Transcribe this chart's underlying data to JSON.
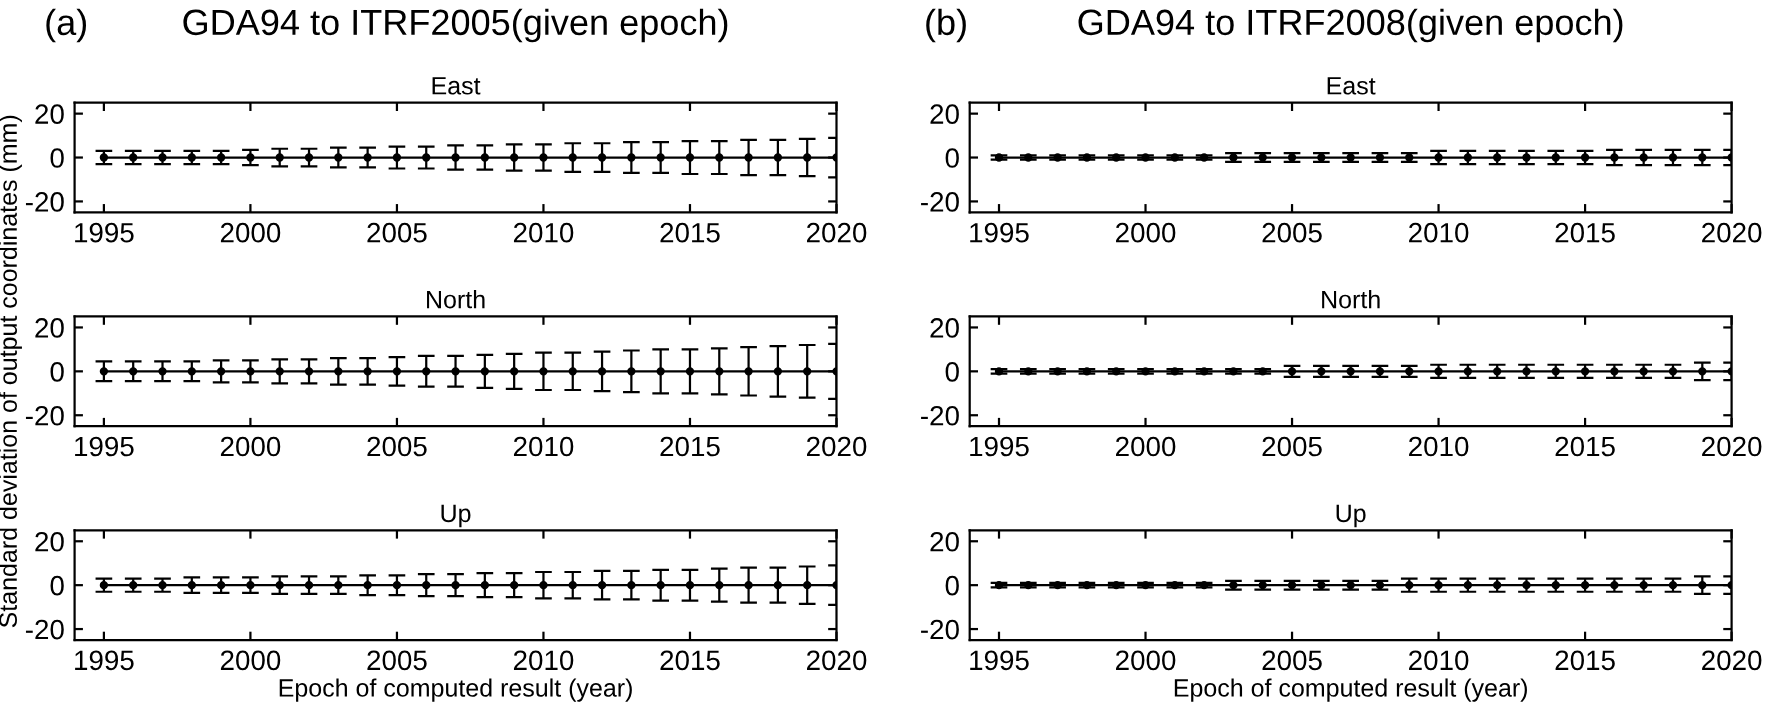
{
  "chart_data": [
    {
      "type": "line",
      "title": "GDA94 to ITRF2005(given epoch)",
      "subtitle": "East",
      "annotations": [
        "(a)"
      ],
      "x": [
        1995,
        1996,
        1997,
        1998,
        1999,
        2000,
        2001,
        2002,
        2003,
        2004,
        2005,
        2006,
        2007,
        2008,
        2009,
        2010,
        2011,
        2012,
        2013,
        2014,
        2015,
        2016,
        2017,
        2018,
        2019,
        2020
      ],
      "series": [
        {
          "color": "#000000",
          "values": [
            0,
            0,
            0,
            0,
            0,
            0,
            0,
            0,
            0,
            0,
            0,
            0,
            0,
            0,
            0,
            0,
            0,
            0,
            0,
            0,
            0,
            0,
            0,
            0,
            0,
            0
          ],
          "errors": [
            3,
            3,
            3,
            3,
            3,
            3.5,
            4,
            4,
            4.5,
            4.5,
            5,
            5,
            5.5,
            5.5,
            6,
            6,
            6.5,
            6.5,
            7,
            7,
            7.5,
            7.5,
            8,
            8,
            8.5,
            9
          ]
        }
      ],
      "marker": "circle",
      "xlim": [
        1994,
        2020
      ],
      "ylim": [
        -25,
        25
      ],
      "xticks": [
        1995,
        2000,
        2005,
        2010,
        2015,
        2020
      ],
      "yticks": [
        -20,
        0,
        20
      ],
      "grid": false,
      "legend": false
    },
    {
      "type": "line",
      "title": "GDA94 to ITRF2008(given epoch)",
      "subtitle": "East",
      "annotations": [
        "(b)"
      ],
      "x": [
        1995,
        1996,
        1997,
        1998,
        1999,
        2000,
        2001,
        2002,
        2003,
        2004,
        2005,
        2006,
        2007,
        2008,
        2009,
        2010,
        2011,
        2012,
        2013,
        2014,
        2015,
        2016,
        2017,
        2018,
        2019,
        2020
      ],
      "series": [
        {
          "color": "#000000",
          "values": [
            0,
            0,
            0,
            0,
            0,
            0,
            0,
            0,
            0,
            0,
            0,
            0,
            0,
            0,
            0,
            0,
            0,
            0,
            0,
            0,
            0,
            0,
            0,
            0,
            0,
            0
          ],
          "errors": [
            1,
            1,
            1,
            1,
            1,
            1,
            1,
            1,
            2,
            2,
            2,
            2,
            2,
            2,
            2,
            3,
            3,
            3,
            3,
            3,
            3,
            3.5,
            3.5,
            3.5,
            3.5,
            3.5
          ]
        }
      ],
      "marker": "circle",
      "xlim": [
        1994,
        2020
      ],
      "ylim": [
        -25,
        25
      ],
      "xticks": [
        1995,
        2000,
        2005,
        2010,
        2015,
        2020
      ],
      "yticks": [
        -20,
        0,
        20
      ],
      "grid": false,
      "legend": false
    },
    {
      "type": "line",
      "title": "North",
      "ylabel": "Standard deviation of output coordinates (mm)",
      "x": [
        1995,
        1996,
        1997,
        1998,
        1999,
        2000,
        2001,
        2002,
        2003,
        2004,
        2005,
        2006,
        2007,
        2008,
        2009,
        2010,
        2011,
        2012,
        2013,
        2014,
        2015,
        2016,
        2017,
        2018,
        2019,
        2020
      ],
      "series": [
        {
          "color": "#000000",
          "values": [
            0,
            0,
            0,
            0,
            0,
            0,
            0,
            0,
            0,
            0,
            0,
            0,
            0,
            0,
            0,
            0,
            0,
            0,
            0,
            0,
            0,
            0,
            0,
            0,
            0,
            0
          ],
          "errors": [
            4.5,
            4.5,
            4.5,
            4.5,
            5,
            5,
            5.5,
            5.5,
            6,
            6,
            6.5,
            7,
            7,
            7.5,
            8,
            8.5,
            8.5,
            9,
            9.5,
            10,
            10,
            10.5,
            11,
            11.5,
            12,
            12.5
          ]
        }
      ],
      "marker": "circle",
      "xlim": [
        1994,
        2020
      ],
      "ylim": [
        -25,
        25
      ],
      "xticks": [
        1995,
        2000,
        2005,
        2010,
        2015,
        2020
      ],
      "yticks": [
        -20,
        0,
        20
      ],
      "grid": false,
      "legend": false
    },
    {
      "type": "line",
      "title": "North",
      "x": [
        1995,
        1996,
        1997,
        1998,
        1999,
        2000,
        2001,
        2002,
        2003,
        2004,
        2005,
        2006,
        2007,
        2008,
        2009,
        2010,
        2011,
        2012,
        2013,
        2014,
        2015,
        2016,
        2017,
        2018,
        2019,
        2020
      ],
      "series": [
        {
          "color": "#000000",
          "values": [
            0,
            0,
            0,
            0,
            0,
            0,
            0,
            0,
            0,
            0,
            0,
            0,
            0,
            0,
            0,
            0,
            0,
            0,
            0,
            0,
            0,
            0,
            0,
            0,
            0,
            0
          ],
          "errors": [
            1,
            1,
            1,
            1,
            1,
            1,
            1,
            1,
            1,
            1,
            2.5,
            2.5,
            2.5,
            2.5,
            2.5,
            3,
            3,
            3,
            3,
            3,
            3,
            3,
            3,
            3,
            4,
            4
          ]
        }
      ],
      "marker": "circle",
      "xlim": [
        1994,
        2020
      ],
      "ylim": [
        -25,
        25
      ],
      "xticks": [
        1995,
        2000,
        2005,
        2010,
        2015,
        2020
      ],
      "yticks": [
        -20,
        0,
        20
      ],
      "grid": false,
      "legend": false
    },
    {
      "type": "line",
      "title": "Up",
      "xlabel": "Epoch of computed result (year)",
      "x": [
        1995,
        1996,
        1997,
        1998,
        1999,
        2000,
        2001,
        2002,
        2003,
        2004,
        2005,
        2006,
        2007,
        2008,
        2009,
        2010,
        2011,
        2012,
        2013,
        2014,
        2015,
        2016,
        2017,
        2018,
        2019,
        2020
      ],
      "series": [
        {
          "color": "#000000",
          "values": [
            0,
            0,
            0,
            0,
            0,
            0,
            0,
            0,
            0,
            0,
            0,
            0,
            0,
            0,
            0,
            0,
            0,
            0,
            0,
            0,
            0,
            0,
            0,
            0,
            0,
            0
          ],
          "errors": [
            3,
            3,
            3,
            3.5,
            3.5,
            3.5,
            4,
            4,
            4,
            4.5,
            4.5,
            5,
            5,
            5.5,
            5.5,
            6,
            6,
            6.5,
            6.5,
            7,
            7,
            7.5,
            8,
            8,
            8.5,
            9
          ]
        }
      ],
      "marker": "circle",
      "xlim": [
        1994,
        2020
      ],
      "ylim": [
        -25,
        25
      ],
      "xticks": [
        1995,
        2000,
        2005,
        2010,
        2015,
        2020
      ],
      "yticks": [
        -20,
        0,
        20
      ],
      "grid": false,
      "legend": false
    },
    {
      "type": "line",
      "title": "Up",
      "xlabel": "Epoch of computed result (year)",
      "x": [
        1995,
        1996,
        1997,
        1998,
        1999,
        2000,
        2001,
        2002,
        2003,
        2004,
        2005,
        2006,
        2007,
        2008,
        2009,
        2010,
        2011,
        2012,
        2013,
        2014,
        2015,
        2016,
        2017,
        2018,
        2019,
        2020
      ],
      "series": [
        {
          "color": "#000000",
          "values": [
            0,
            0,
            0,
            0,
            0,
            0,
            0,
            0,
            0,
            0,
            0,
            0,
            0,
            0,
            0,
            0,
            0,
            0,
            0,
            0,
            0,
            0,
            0,
            0,
            0,
            0
          ],
          "errors": [
            1,
            1,
            1,
            1,
            1,
            1,
            1,
            1,
            2,
            2,
            2,
            2,
            2,
            2,
            3,
            3,
            3,
            3,
            3,
            3,
            3,
            3,
            3,
            3,
            4,
            4
          ]
        }
      ],
      "marker": "circle",
      "xlim": [
        1994,
        2020
      ],
      "ylim": [
        -25,
        25
      ],
      "xticks": [
        1995,
        2000,
        2005,
        2010,
        2015,
        2020
      ],
      "yticks": [
        -20,
        0,
        20
      ],
      "grid": false,
      "legend": false
    }
  ]
}
